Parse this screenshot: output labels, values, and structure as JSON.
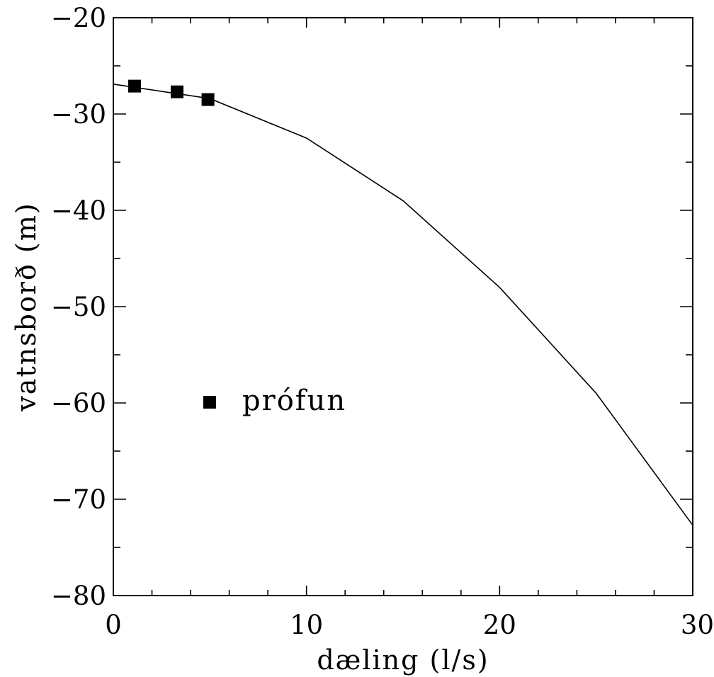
{
  "chart_data": {
    "type": "line",
    "title": "",
    "xlabel": "dæling (l/s)",
    "ylabel": "vatnsborð (m)",
    "xlim": [
      0,
      30
    ],
    "ylim": [
      -80,
      -20
    ],
    "x_ticks": [
      0,
      10,
      20,
      30
    ],
    "y_ticks": [
      -80,
      -70,
      -60,
      -50,
      -40,
      -30,
      -20
    ],
    "x_minor_step": 2,
    "y_minor_step": 5,
    "grid": false,
    "legend_position": "left-center",
    "series": [
      {
        "type": "line",
        "color": "#000000",
        "x": [
          0,
          5,
          10,
          15,
          20,
          25,
          30
        ],
        "y": [
          -26.9,
          -28.4,
          -32.5,
          -39.0,
          -48.0,
          -59.0,
          -72.7
        ]
      },
      {
        "name": "prófun",
        "type": "scatter",
        "marker": "square",
        "color": "#000000",
        "x": [
          1.1,
          3.3,
          4.9
        ],
        "y": [
          -27.1,
          -27.7,
          -28.5
        ]
      }
    ]
  }
}
